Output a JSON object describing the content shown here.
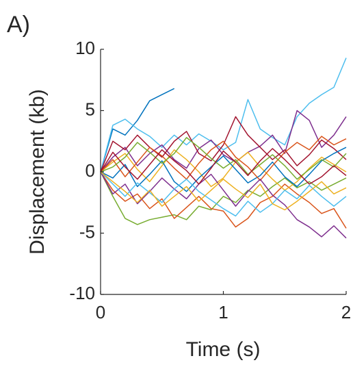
{
  "chart_data": {
    "type": "line",
    "panel_label": "A)",
    "x_label": "Time (s)",
    "y_label": "Displacement (kb)",
    "x": [
      0,
      0.1,
      0.2,
      0.3,
      0.4,
      0.5,
      0.6,
      0.7,
      0.8,
      0.9,
      1.0,
      1.1,
      1.2,
      1.3,
      1.4,
      1.5,
      1.6,
      1.7,
      1.8,
      1.9,
      2.0
    ],
    "xlim": [
      0,
      2
    ],
    "xticks": [
      0,
      1,
      2
    ],
    "ylim": [
      -10,
      10
    ],
    "yticks": [
      -10,
      -5,
      0,
      5,
      10
    ],
    "series": [
      {
        "color": "#0072BD",
        "values": [
          0,
          3.5,
          3.0,
          4.2,
          5.8,
          6.3,
          6.8,
          null,
          null,
          null,
          null,
          null,
          null,
          null,
          null,
          null,
          null,
          null,
          null,
          null,
          null
        ]
      },
      {
        "color": "#4DBEEE",
        "values": [
          0,
          3.8,
          4.3,
          3.5,
          2.9,
          2.0,
          3.0,
          2.2,
          3.1,
          2.5,
          1.8,
          2.4,
          5.9,
          3.5,
          2.8,
          2.2,
          4.5,
          5.6,
          6.3,
          6.9,
          9.3
        ]
      },
      {
        "color": "#7E2F8E",
        "values": [
          0,
          1.2,
          2.0,
          0.5,
          1.5,
          2.2,
          1.0,
          0.3,
          1.9,
          2.6,
          1.4,
          0.8,
          1.6,
          2.1,
          3.0,
          1.5,
          5.0,
          4.2,
          2.0,
          3.0,
          4.5
        ]
      },
      {
        "color": "#77AC30",
        "values": [
          0,
          -2.0,
          -3.8,
          -4.3,
          -3.9,
          -3.7,
          -3.5,
          -3.9,
          -2.8,
          -3.1,
          -2.0,
          -2.5,
          -1.5,
          -2.0,
          -1.2,
          -0.5,
          -1.3,
          -0.8,
          -1.5,
          -1.0,
          -0.5
        ]
      },
      {
        "color": "#D95319",
        "values": [
          0,
          -1.5,
          -2.4,
          -1.8,
          -3.0,
          -2.2,
          -3.8,
          -2.9,
          -2.0,
          -3.0,
          -3.2,
          -4.5,
          -3.8,
          -2.5,
          -2.0,
          -1.0,
          -1.8,
          -2.5,
          -3.4,
          -3.0,
          -4.6
        ]
      },
      {
        "color": "#EDB120",
        "values": [
          0,
          0.8,
          1.5,
          0.2,
          -0.8,
          0.5,
          1.8,
          1.0,
          0.0,
          -1.2,
          -0.5,
          0.8,
          1.6,
          0.4,
          -0.6,
          -1.5,
          -0.8,
          0.3,
          1.2,
          0.6,
          0.0
        ]
      },
      {
        "color": "#A2142F",
        "values": [
          0,
          2.5,
          1.8,
          3.0,
          2.0,
          1.2,
          2.5,
          3.3,
          1.5,
          0.9,
          2.2,
          4.5,
          3.0,
          2.0,
          1.0,
          1.8,
          0.5,
          1.4,
          2.6,
          1.9,
          1.0
        ]
      },
      {
        "color": "#0072BD",
        "values": [
          0,
          -0.5,
          0.6,
          -1.2,
          -0.2,
          0.9,
          -0.8,
          -1.6,
          -0.5,
          0.4,
          1.3,
          0.2,
          -0.9,
          -0.3,
          0.8,
          -0.4,
          -1.2,
          -0.2,
          0.9,
          1.5,
          2.0
        ]
      },
      {
        "color": "#D95319",
        "values": [
          0,
          1.0,
          -0.4,
          0.8,
          2.0,
          1.3,
          0.3,
          -0.6,
          0.7,
          1.8,
          2.5,
          1.2,
          0.4,
          -0.7,
          0.5,
          1.6,
          2.4,
          1.8,
          2.9,
          2.2,
          2.7
        ]
      },
      {
        "color": "#7E2F8E",
        "values": [
          0,
          -1.8,
          -1.0,
          -2.6,
          -1.6,
          -0.5,
          -1.4,
          -2.2,
          -1.0,
          -0.2,
          -1.5,
          -2.8,
          -1.6,
          -0.6,
          -1.9,
          -2.7,
          -3.9,
          -4.5,
          -5.3,
          -4.4,
          -5.4
        ]
      },
      {
        "color": "#77AC30",
        "values": [
          0,
          0.4,
          1.2,
          2.4,
          1.6,
          0.7,
          1.5,
          2.8,
          2.0,
          1.1,
          0.3,
          1.0,
          -0.2,
          0.6,
          1.4,
          0.5,
          -0.6,
          0.2,
          1.0,
          0.4,
          1.5
        ]
      },
      {
        "color": "#4DBEEE",
        "values": [
          0,
          -1.0,
          -2.0,
          -0.9,
          -1.7,
          -2.5,
          -1.4,
          -0.6,
          -1.6,
          -2.3,
          -3.0,
          -3.6,
          -2.4,
          -3.3,
          -2.6,
          -1.5,
          -2.2,
          -1.1,
          -2.0,
          -2.8,
          -2.0
        ]
      },
      {
        "color": "#EDB120",
        "values": [
          0,
          -0.8,
          -1.6,
          -2.5,
          -1.5,
          -2.8,
          -2.0,
          -1.2,
          -2.4,
          -1.5,
          -0.6,
          -1.4,
          -2.1,
          -1.0,
          -2.6,
          -3.1,
          -2.4,
          -1.6,
          -0.8,
          -1.8,
          -1.3
        ]
      },
      {
        "color": "#A2142F",
        "values": [
          0,
          1.6,
          0.4,
          -0.6,
          0.6,
          1.8,
          0.9,
          0.1,
          -1.0,
          0.3,
          1.7,
          0.8,
          -0.3,
          0.9,
          1.9,
          1.0,
          0.0,
          -1.0,
          -0.4,
          0.5,
          -0.3
        ]
      }
    ]
  }
}
